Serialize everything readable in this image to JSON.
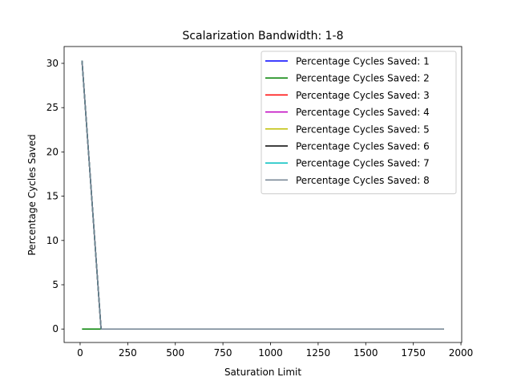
{
  "chart_data": {
    "type": "line",
    "title": "Scalarization Bandwidth: 1-8",
    "xlabel": "Saturation Limit",
    "ylabel": "Percentage Cycles Saved",
    "xlim": [
      -84,
      2004
    ],
    "ylim": [
      -1.52,
      31.9
    ],
    "xticks": [
      0,
      250,
      500,
      750,
      1000,
      1250,
      1500,
      1750,
      2000
    ],
    "yticks": [
      0,
      5,
      10,
      15,
      20,
      25,
      30
    ],
    "grid": false,
    "legend_position": "top-right",
    "x": [
      10,
      110,
      1910
    ],
    "series": [
      {
        "name": "Percentage Cycles Saved: 1",
        "color": "#0000ff",
        "values": [
          30.3,
          0,
          0
        ]
      },
      {
        "name": "Percentage Cycles Saved: 2",
        "color": "#008000",
        "values": [
          0,
          0,
          0
        ]
      },
      {
        "name": "Percentage Cycles Saved: 3",
        "color": "#ff0000",
        "values": [
          30.3,
          0,
          0
        ]
      },
      {
        "name": "Percentage Cycles Saved: 4",
        "color": "#bf00bf",
        "values": [
          30.3,
          0,
          0
        ]
      },
      {
        "name": "Percentage Cycles Saved: 5",
        "color": "#bfbf00",
        "values": [
          30.3,
          0,
          0
        ]
      },
      {
        "name": "Percentage Cycles Saved: 6",
        "color": "#000000",
        "values": [
          30.3,
          0,
          0
        ]
      },
      {
        "name": "Percentage Cycles Saved: 7",
        "color": "#00bfbf",
        "values": [
          30.3,
          0,
          0
        ]
      },
      {
        "name": "Percentage Cycles Saved: 8",
        "color": "#708090",
        "values": [
          30.3,
          0,
          0
        ]
      }
    ]
  }
}
